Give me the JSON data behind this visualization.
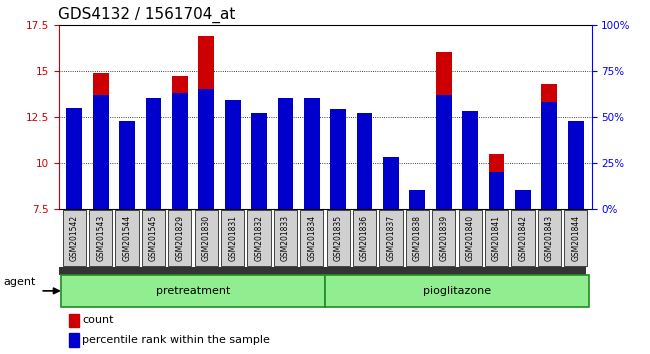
{
  "title": "GDS4132 / 1561704_at",
  "categories": [
    "GSM201542",
    "GSM201543",
    "GSM201544",
    "GSM201545",
    "GSM201829",
    "GSM201830",
    "GSM201831",
    "GSM201832",
    "GSM201833",
    "GSM201834",
    "GSM201835",
    "GSM201836",
    "GSM201837",
    "GSM201838",
    "GSM201839",
    "GSM201840",
    "GSM201841",
    "GSM201842",
    "GSM201843",
    "GSM201844"
  ],
  "red_values": [
    13.0,
    14.9,
    10.5,
    13.3,
    14.7,
    16.9,
    13.1,
    9.6,
    13.5,
    13.5,
    11.7,
    10.6,
    8.3,
    7.9,
    16.0,
    10.4,
    10.5,
    7.6,
    14.3,
    9.6
  ],
  "blue_percentile": [
    55,
    62,
    48,
    60,
    63,
    65,
    59,
    52,
    60,
    60,
    54,
    52,
    28,
    10,
    62,
    53,
    20,
    10,
    58,
    48
  ],
  "baseline": 7.5,
  "ylim_left": [
    7.5,
    17.5
  ],
  "ylim_right": [
    0,
    100
  ],
  "yticks_left": [
    7.5,
    10.0,
    12.5,
    15.0,
    17.5
  ],
  "ytick_labels_left": [
    "7.5",
    "10",
    "12.5",
    "15",
    "17.5"
  ],
  "yticks_right_vals": [
    0,
    25,
    50,
    75,
    100
  ],
  "ytick_labels_right": [
    "0%",
    "25%",
    "50%",
    "75%",
    "100%"
  ],
  "group1_label": "pretreatment",
  "group2_label": "pioglitazone",
  "agent_label": "agent",
  "legend_red": "count",
  "legend_blue": "percentile rank within the sample",
  "bar_width": 0.6,
  "red_color": "#cc0000",
  "blue_color": "#0000cc",
  "xticklabel_bg": "#d0d0d0",
  "group_bg_color": "#90ee90",
  "title_fontsize": 11,
  "tick_fontsize": 7.5
}
